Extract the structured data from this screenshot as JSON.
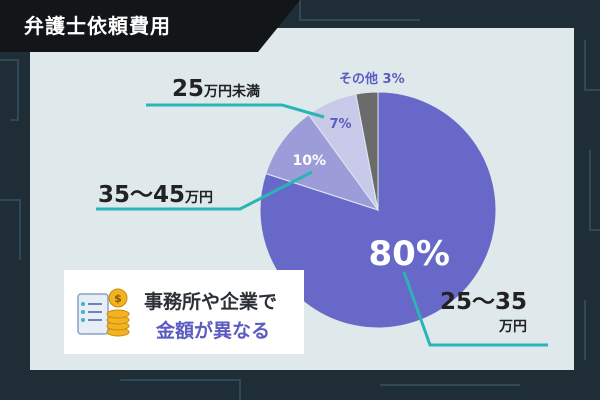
{
  "title": "弁護士依頼費用",
  "badge": {
    "line1": "事務所や企業で",
    "line2": "金額が異なる",
    "icon": "checklist-coins-icon"
  },
  "labels": {
    "under25": {
      "num": "25",
      "unit": "万円未満"
    },
    "r35_45": {
      "num": "35～45",
      "unit": "万円"
    },
    "r25_35": {
      "num": "25～35",
      "unit": "万円"
    },
    "other": "その他 3%"
  },
  "colors": {
    "main": "#6868c9",
    "mid": "#9c9cd9",
    "light": "#c9c9e9",
    "other": "#6b6b6b",
    "leader": "#2ab5b5",
    "accent_text": "#5b5bc2"
  },
  "chart_data": {
    "type": "pie",
    "title": "弁護士依頼費用",
    "slices": [
      {
        "label": "25～35万円",
        "value": 80,
        "value_label": "80%"
      },
      {
        "label": "35～45万円",
        "value": 10,
        "value_label": "10%"
      },
      {
        "label": "25万円未満",
        "value": 7,
        "value_label": "7%"
      },
      {
        "label": "その他",
        "value": 3,
        "value_label": "3%"
      }
    ]
  }
}
